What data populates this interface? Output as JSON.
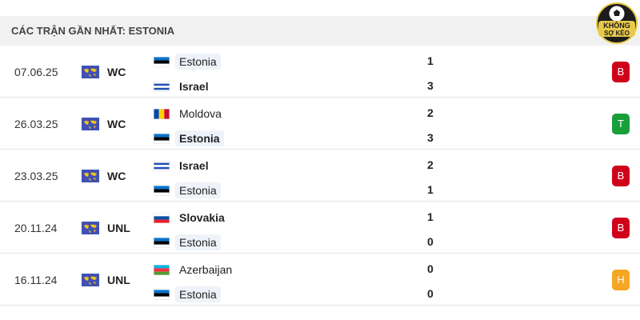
{
  "header": {
    "title": "CÁC TRẬN GẦN NHẤT: ESTONIA"
  },
  "logo": {
    "line1": "KHÔNG",
    "line2": "SỢ KÈO"
  },
  "matches": [
    {
      "date": "07.06.25",
      "competition": "WC",
      "home": {
        "name": "Estonia",
        "bold": false,
        "highlight": true,
        "flag": [
          "#0072ce",
          "#000000",
          "#ffffff"
        ],
        "flag_dir": "h"
      },
      "away": {
        "name": "Israel",
        "bold": true,
        "highlight": false,
        "flag": [
          "#ffffff",
          "#1f4fb4",
          "#ffffff",
          "#1f4fb4",
          "#ffffff"
        ],
        "flag_dir": "h"
      },
      "home_score": 1,
      "away_score": 3,
      "result": "B",
      "result_color": "#d0021b"
    },
    {
      "date": "26.03.25",
      "competition": "WC",
      "home": {
        "name": "Moldova",
        "bold": false,
        "highlight": false,
        "flag": [
          "#0046ae",
          "#ffd200",
          "#cc092f"
        ],
        "flag_dir": "v"
      },
      "away": {
        "name": "Estonia",
        "bold": true,
        "highlight": true,
        "flag": [
          "#0072ce",
          "#000000",
          "#ffffff"
        ],
        "flag_dir": "h"
      },
      "home_score": 2,
      "away_score": 3,
      "result": "T",
      "result_color": "#1a9e3a"
    },
    {
      "date": "23.03.25",
      "competition": "WC",
      "home": {
        "name": "Israel",
        "bold": true,
        "highlight": false,
        "flag": [
          "#ffffff",
          "#1f4fb4",
          "#ffffff",
          "#1f4fb4",
          "#ffffff"
        ],
        "flag_dir": "h"
      },
      "away": {
        "name": "Estonia",
        "bold": false,
        "highlight": true,
        "flag": [
          "#0072ce",
          "#000000",
          "#ffffff"
        ],
        "flag_dir": "h"
      },
      "home_score": 2,
      "away_score": 1,
      "result": "B",
      "result_color": "#d0021b"
    },
    {
      "date": "20.11.24",
      "competition": "UNL",
      "home": {
        "name": "Slovakia",
        "bold": true,
        "highlight": false,
        "flag": [
          "#ffffff",
          "#0b4ea2",
          "#ee1c25"
        ],
        "flag_dir": "h"
      },
      "away": {
        "name": "Estonia",
        "bold": false,
        "highlight": true,
        "flag": [
          "#0072ce",
          "#000000",
          "#ffffff"
        ],
        "flag_dir": "h"
      },
      "home_score": 1,
      "away_score": 0,
      "result": "B",
      "result_color": "#d0021b"
    },
    {
      "date": "16.11.24",
      "competition": "UNL",
      "home": {
        "name": "Azerbaijan",
        "bold": false,
        "highlight": false,
        "flag": [
          "#00b5e2",
          "#ef3340",
          "#509e2f"
        ],
        "flag_dir": "h"
      },
      "away": {
        "name": "Estonia",
        "bold": false,
        "highlight": true,
        "flag": [
          "#0072ce",
          "#000000",
          "#ffffff"
        ],
        "flag_dir": "h"
      },
      "home_score": 0,
      "away_score": 0,
      "result": "H",
      "result_color": "#f5a623"
    }
  ]
}
